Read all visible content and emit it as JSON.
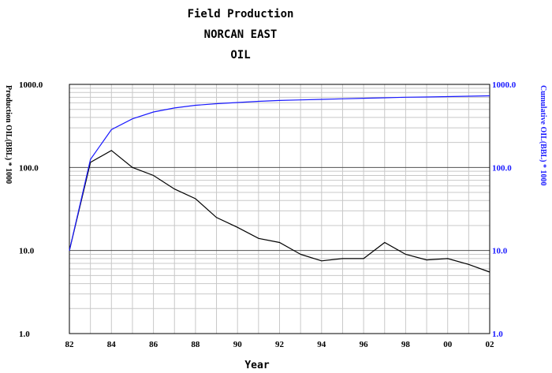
{
  "title_lines": [
    "Field Production",
    "NORCAN EAST",
    "OIL"
  ],
  "chart_data": {
    "type": "line",
    "title": "Field Production NORCAN EAST OIL",
    "xlabel": "Year",
    "ylabel_left": "Production OIL(BBL) * 1000",
    "ylabel_right": "Cumulative OIL(BBL) * 1000",
    "x_ticks": [
      "82",
      "84",
      "86",
      "88",
      "90",
      "92",
      "94",
      "96",
      "98",
      "00",
      "02"
    ],
    "xlim": [
      1982,
      2002
    ],
    "y_scale": "log",
    "ylim_left": [
      1.0,
      1000.0
    ],
    "ylim_right": [
      1.0,
      1000.0
    ],
    "y_ticks_left": [
      "1.0",
      "10.0",
      "100.0",
      "1000.0"
    ],
    "y_ticks_right": [
      "1.0",
      "10.0",
      "100.0",
      "1000.0"
    ],
    "grid": true,
    "series": [
      {
        "name": "Production OIL(BBL) * 1000",
        "axis": "left",
        "color": "#000000",
        "x": [
          1982,
          1983,
          1984,
          1985,
          1986,
          1987,
          1988,
          1989,
          1990,
          1991,
          1992,
          1993,
          1994,
          1995,
          1996,
          1997,
          1998,
          1999,
          2000,
          2001,
          2002
        ],
        "y": [
          10,
          115,
          160,
          100,
          80,
          55,
          42,
          25,
          19,
          14,
          12.5,
          9,
          7.5,
          8,
          8,
          12.5,
          9,
          7.7,
          8,
          6.8,
          5.5
        ]
      },
      {
        "name": "Cumulative OIL(BBL) * 1000",
        "axis": "right",
        "color": "#1a1aff",
        "x": [
          1982,
          1983,
          1984,
          1985,
          1986,
          1987,
          1988,
          1989,
          1990,
          1991,
          1992,
          1993,
          1994,
          1995,
          1996,
          1997,
          1998,
          1999,
          2000,
          2001,
          2002
        ],
        "y": [
          10,
          125,
          285,
          385,
          465,
          520,
          560,
          585,
          605,
          625,
          640,
          650,
          660,
          670,
          680,
          690,
          700,
          705,
          712,
          720,
          728
        ]
      }
    ]
  }
}
